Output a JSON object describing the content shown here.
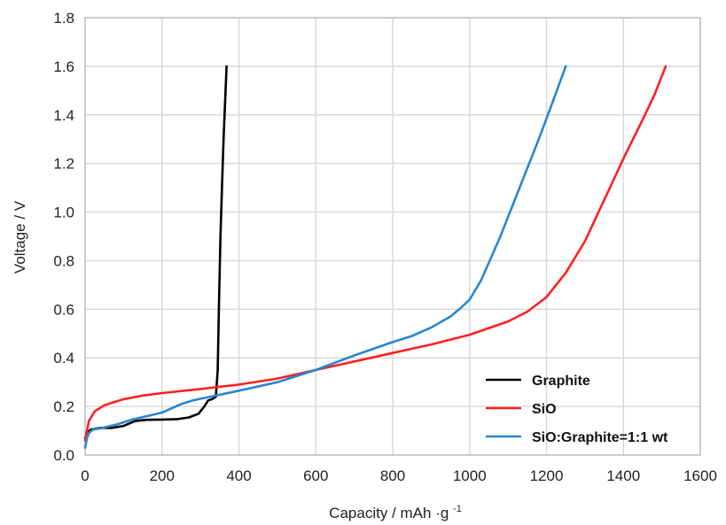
{
  "chart_data": {
    "type": "line",
    "title": "",
    "xlabel": "Capacity / mAh",
    "xlabel_unit_suffix": "·g",
    "xlabel_superscript": "-1",
    "ylabel": "Voltage / V",
    "xlim": [
      0,
      1600
    ],
    "ylim": [
      0,
      1.8
    ],
    "xticks": [
      "0",
      "200",
      "400",
      "600",
      "800",
      "1000",
      "1200",
      "1400",
      "1600"
    ],
    "yticks": [
      "0.0",
      "0.2",
      "0.4",
      "0.6",
      "0.8",
      "1.0",
      "1.2",
      "1.4",
      "1.6",
      "1.8"
    ],
    "grid": true,
    "legend_position": "bottom-right",
    "series": [
      {
        "name": "Graphite",
        "color": "#000000",
        "points": [
          [
            0,
            0.07
          ],
          [
            5,
            0.09
          ],
          [
            15,
            0.105
          ],
          [
            40,
            0.112
          ],
          [
            70,
            0.112
          ],
          [
            100,
            0.12
          ],
          [
            130,
            0.14
          ],
          [
            160,
            0.145
          ],
          [
            200,
            0.146
          ],
          [
            240,
            0.148
          ],
          [
            270,
            0.155
          ],
          [
            295,
            0.17
          ],
          [
            310,
            0.2
          ],
          [
            320,
            0.225
          ],
          [
            330,
            0.23
          ],
          [
            340,
            0.24
          ],
          [
            345,
            0.35
          ],
          [
            348,
            0.6
          ],
          [
            352,
            0.9
          ],
          [
            356,
            1.1
          ],
          [
            360,
            1.3
          ],
          [
            364,
            1.45
          ],
          [
            368,
            1.6
          ]
        ]
      },
      {
        "name": "SiO",
        "color": "#ff2020",
        "points": [
          [
            0,
            0.06
          ],
          [
            10,
            0.14
          ],
          [
            25,
            0.18
          ],
          [
            50,
            0.205
          ],
          [
            100,
            0.23
          ],
          [
            150,
            0.245
          ],
          [
            200,
            0.255
          ],
          [
            300,
            0.272
          ],
          [
            400,
            0.29
          ],
          [
            500,
            0.315
          ],
          [
            600,
            0.35
          ],
          [
            700,
            0.385
          ],
          [
            800,
            0.42
          ],
          [
            900,
            0.455
          ],
          [
            1000,
            0.495
          ],
          [
            1100,
            0.55
          ],
          [
            1150,
            0.59
          ],
          [
            1200,
            0.65
          ],
          [
            1250,
            0.75
          ],
          [
            1300,
            0.88
          ],
          [
            1350,
            1.05
          ],
          [
            1400,
            1.22
          ],
          [
            1450,
            1.38
          ],
          [
            1480,
            1.48
          ],
          [
            1510,
            1.6
          ]
        ]
      },
      {
        "name": "SiO:Graphite=1:1 wt",
        "color": "#2a86cf",
        "points": [
          [
            0,
            0.03
          ],
          [
            5,
            0.07
          ],
          [
            10,
            0.09
          ],
          [
            20,
            0.105
          ],
          [
            40,
            0.11
          ],
          [
            80,
            0.125
          ],
          [
            120,
            0.145
          ],
          [
            160,
            0.16
          ],
          [
            200,
            0.175
          ],
          [
            250,
            0.21
          ],
          [
            280,
            0.225
          ],
          [
            310,
            0.235
          ],
          [
            340,
            0.245
          ],
          [
            400,
            0.265
          ],
          [
            500,
            0.3
          ],
          [
            600,
            0.35
          ],
          [
            700,
            0.41
          ],
          [
            800,
            0.465
          ],
          [
            850,
            0.49
          ],
          [
            900,
            0.525
          ],
          [
            950,
            0.57
          ],
          [
            980,
            0.61
          ],
          [
            1000,
            0.64
          ],
          [
            1030,
            0.72
          ],
          [
            1080,
            0.9
          ],
          [
            1130,
            1.1
          ],
          [
            1180,
            1.3
          ],
          [
            1220,
            1.47
          ],
          [
            1250,
            1.6
          ]
        ]
      }
    ]
  }
}
